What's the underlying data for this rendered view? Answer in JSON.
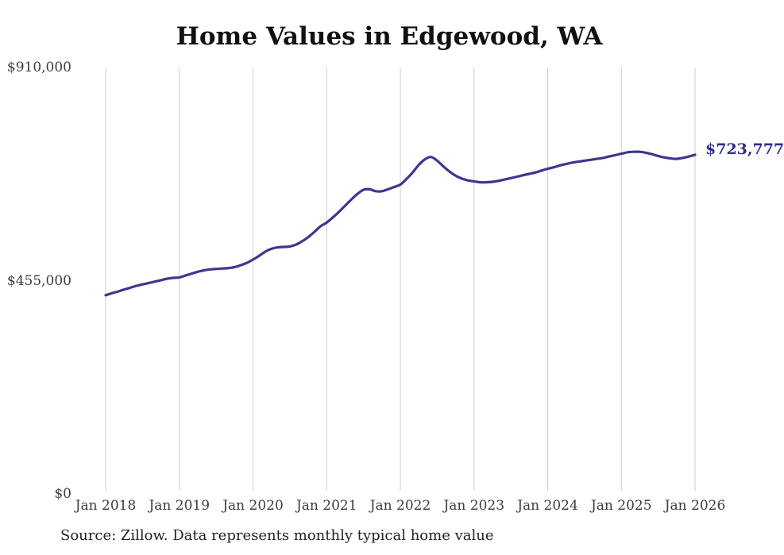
{
  "chart": {
    "title": "Home Values in Edgewood, WA",
    "source": "Source: Zillow. Data represents monthly typical home value",
    "end_label": "$723,777"
  },
  "chart_data": {
    "type": "line",
    "title": "Home Values in Edgewood, WA",
    "xlabel": "",
    "ylabel": "",
    "series_name": "Monthly typical home value",
    "source": "Source: Zillow. Data represents monthly typical home value",
    "ylim": [
      0,
      910000
    ],
    "grid": "vertical-only",
    "legend": "none",
    "annotation": {
      "text": "$723,777",
      "value": 723777,
      "position": "end-of-line"
    },
    "y_ticks": [
      {
        "label": "$0",
        "value": 0
      },
      {
        "label": "$455,000",
        "value": 455000
      },
      {
        "label": "$910,000",
        "value": 910000
      }
    ],
    "x_tick_labels": [
      "Jan 2018",
      "Jan 2019",
      "Jan 2020",
      "Jan 2021",
      "Jan 2022",
      "Jan 2023",
      "Jan 2024",
      "Jan 2025",
      "Jan 2026"
    ],
    "x": [
      "2018-01",
      "2018-02",
      "2018-03",
      "2018-04",
      "2018-05",
      "2018-06",
      "2018-07",
      "2018-08",
      "2018-09",
      "2018-10",
      "2018-11",
      "2018-12",
      "2019-01",
      "2019-02",
      "2019-03",
      "2019-04",
      "2019-05",
      "2019-06",
      "2019-07",
      "2019-08",
      "2019-09",
      "2019-10",
      "2019-11",
      "2019-12",
      "2020-01",
      "2020-02",
      "2020-03",
      "2020-04",
      "2020-05",
      "2020-06",
      "2020-07",
      "2020-08",
      "2020-09",
      "2020-10",
      "2020-11",
      "2020-12",
      "2021-01",
      "2021-02",
      "2021-03",
      "2021-04",
      "2021-05",
      "2021-06",
      "2021-07",
      "2021-08",
      "2021-09",
      "2021-10",
      "2021-11",
      "2021-12",
      "2022-01",
      "2022-02",
      "2022-03",
      "2022-04",
      "2022-05",
      "2022-06",
      "2022-07",
      "2022-08",
      "2022-09",
      "2022-10",
      "2022-11",
      "2022-12",
      "2023-01",
      "2023-02",
      "2023-03",
      "2023-04",
      "2023-05",
      "2023-06",
      "2023-07",
      "2023-08",
      "2023-09",
      "2023-10",
      "2023-11",
      "2023-12",
      "2024-01",
      "2024-02",
      "2024-03",
      "2024-04",
      "2024-05",
      "2024-06",
      "2024-07",
      "2024-08",
      "2024-09",
      "2024-10",
      "2024-11",
      "2024-12",
      "2025-01",
      "2025-02",
      "2025-03",
      "2025-04",
      "2025-05",
      "2025-06",
      "2025-07",
      "2025-08",
      "2025-09",
      "2025-10",
      "2025-11",
      "2025-12",
      "2026-01"
    ],
    "values": [
      424000,
      428000,
      432000,
      436000,
      440000,
      444000,
      447000,
      450000,
      453000,
      456000,
      459000,
      461000,
      462000,
      466000,
      470000,
      474000,
      477000,
      479000,
      480000,
      481000,
      482000,
      484000,
      488000,
      493000,
      500000,
      508000,
      517000,
      523000,
      526000,
      527000,
      528000,
      532000,
      539000,
      548000,
      559000,
      571000,
      579000,
      590000,
      602000,
      615000,
      628000,
      640000,
      649000,
      650000,
      646000,
      646000,
      650000,
      655000,
      660000,
      672000,
      686000,
      702000,
      714000,
      719000,
      711000,
      699000,
      688000,
      679000,
      673000,
      669000,
      667000,
      665000,
      665000,
      666000,
      668000,
      671000,
      674000,
      677000,
      680000,
      683000,
      686000,
      690000,
      694000,
      697000,
      701000,
      704000,
      707000,
      709000,
      711000,
      713000,
      715000,
      717000,
      720000,
      723000,
      726000,
      729000,
      730000,
      730000,
      728000,
      725000,
      721000,
      718000,
      716000,
      715000,
      717000,
      720000,
      723777
    ],
    "colors": {
      "line": "#3b3790",
      "end_label": "#2f2d8c",
      "title": "#111111",
      "axis_text": "#3d3d3d",
      "grid": "#cccccc",
      "background": "#ffffff",
      "source_text": "#222222"
    }
  }
}
